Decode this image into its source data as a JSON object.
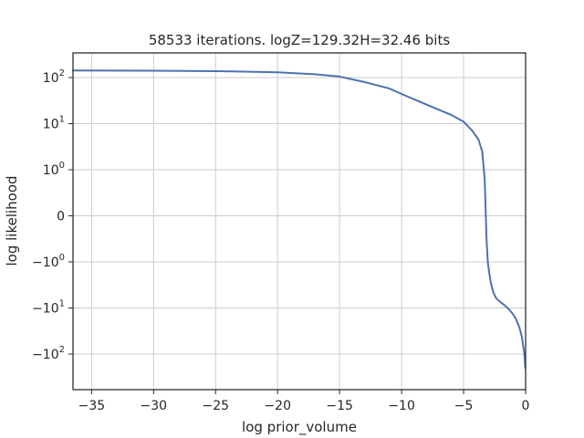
{
  "chart_data": {
    "type": "line",
    "title": "58533 iterations. logZ=129.32H=32.46 bits",
    "xlabel": "log prior_volume",
    "ylabel": "log likelihood",
    "xlim": [
      -36.5,
      0
    ],
    "y_scale": "symlog",
    "grid": true,
    "legend": "none",
    "x_ticks": [
      {
        "value": -35,
        "label": "−35"
      },
      {
        "value": -30,
        "label": "−30"
      },
      {
        "value": -25,
        "label": "−25"
      },
      {
        "value": -20,
        "label": "−20"
      },
      {
        "value": -15,
        "label": "−15"
      },
      {
        "value": -10,
        "label": "−10"
      },
      {
        "value": -5,
        "label": "−5"
      },
      {
        "value": 0,
        "label": "0"
      }
    ],
    "y_ticks": [
      {
        "value": 100,
        "base": "10",
        "exp": "2",
        "neg": false
      },
      {
        "value": 10,
        "base": "10",
        "exp": "1",
        "neg": false
      },
      {
        "value": 1,
        "base": "10",
        "exp": "0",
        "neg": false
      },
      {
        "value": 0,
        "plain": "0"
      },
      {
        "value": -1,
        "base": "10",
        "exp": "0",
        "neg": true
      },
      {
        "value": -10,
        "base": "10",
        "exp": "1",
        "neg": true
      },
      {
        "value": -100,
        "base": "10",
        "exp": "2",
        "neg": true
      }
    ],
    "series": [
      {
        "color": "#4c72b0",
        "x": [
          -36.5,
          -30,
          -25,
          -20,
          -17,
          -15,
          -13,
          -11,
          -10,
          -8,
          -6,
          -5,
          -4.3,
          -3.8,
          -3.5,
          -3.3,
          -3.15,
          -3.05,
          -2.95,
          -2.8,
          -2.6,
          -2.4,
          -2.2,
          -2.0,
          -1.7,
          -1.4,
          -1.1,
          -0.8,
          -0.5,
          -0.3,
          -0.1,
          -0.02
        ],
        "y": [
          142,
          141,
          138,
          130,
          118,
          105,
          80,
          58,
          44,
          26,
          15.5,
          11,
          7,
          4.5,
          2.5,
          0.8,
          -0.5,
          -1.0,
          -1.6,
          -2.9,
          -4.6,
          -6.0,
          -6.8,
          -7.6,
          -8.7,
          -10.3,
          -12.7,
          -16.8,
          -26.3,
          -42.6,
          -98.3,
          -200
        ]
      }
    ]
  }
}
